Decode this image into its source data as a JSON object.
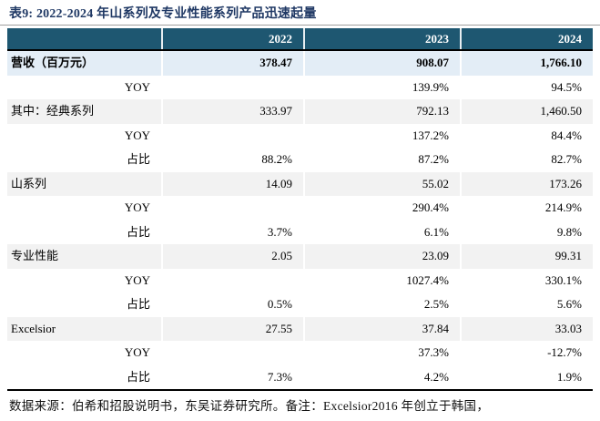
{
  "title": "表9:  2022-2024 年山系列及专业性能系列产品迅速起量",
  "colors": {
    "header_bg": "#1E5771",
    "revenue_row_bg": "#E3EDF6",
    "category_row_bg": "#F2F2F2",
    "title_color": "#1F3864"
  },
  "table": {
    "columns": [
      "",
      "2022",
      "2023",
      "2024"
    ],
    "rows": [
      {
        "label": "营收（百万元）",
        "style": "revenue",
        "values": [
          "378.47",
          "908.07",
          "1,766.10"
        ]
      },
      {
        "label": "YOY",
        "style": "sub",
        "values": [
          "",
          "139.9%",
          "94.5%"
        ]
      },
      {
        "label": "其中：经典系列",
        "style": "category",
        "values": [
          "333.97",
          "792.13",
          "1,460.50"
        ]
      },
      {
        "label": "YOY",
        "style": "sub",
        "values": [
          "",
          "137.2%",
          "84.4%"
        ]
      },
      {
        "label": "占比",
        "style": "sub",
        "values": [
          "88.2%",
          "87.2%",
          "82.7%"
        ]
      },
      {
        "label": "山系列",
        "style": "category",
        "values": [
          "14.09",
          "55.02",
          "173.26"
        ]
      },
      {
        "label": "YOY",
        "style": "sub",
        "values": [
          "",
          "290.4%",
          "214.9%"
        ]
      },
      {
        "label": "占比",
        "style": "sub",
        "values": [
          "3.7%",
          "6.1%",
          "9.8%"
        ]
      },
      {
        "label": "专业性能",
        "style": "category",
        "values": [
          "2.05",
          "23.09",
          "99.31"
        ]
      },
      {
        "label": "YOY",
        "style": "sub",
        "values": [
          "",
          "1027.4%",
          "330.1%"
        ]
      },
      {
        "label": "占比",
        "style": "sub",
        "values": [
          "0.5%",
          "2.5%",
          "5.6%"
        ]
      },
      {
        "label": "Excelsior",
        "style": "category",
        "values": [
          "27.55",
          "37.84",
          "33.03"
        ]
      },
      {
        "label": "YOY",
        "style": "sub",
        "values": [
          "",
          "37.3%",
          "-12.7%"
        ]
      },
      {
        "label": "占比",
        "style": "sub",
        "values": [
          "7.3%",
          "4.2%",
          "1.9%"
        ]
      }
    ]
  },
  "footnote": "数据来源：伯希和招股说明书，东吴证券研究所。备注：Excelsior2016 年创立于韩国，"
}
